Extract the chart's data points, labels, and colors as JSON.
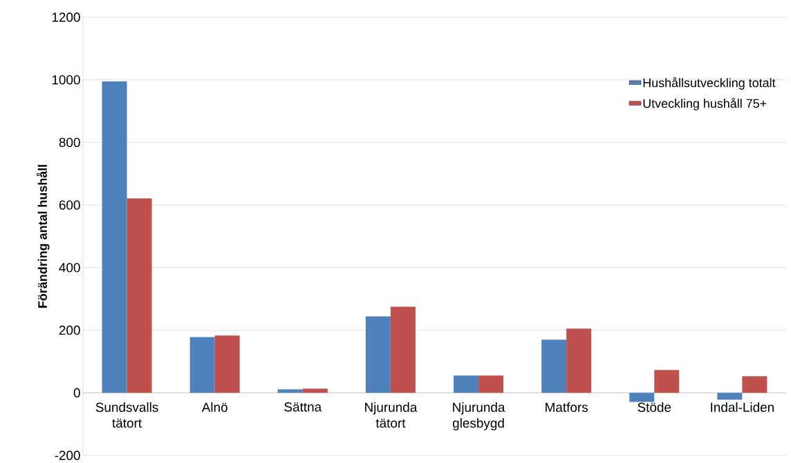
{
  "chart_data": {
    "type": "bar",
    "ylabel": "Förändring antal hushåll",
    "categories": [
      "Sundsvalls tätort",
      "Alnö",
      "Sättna",
      "Njurunda tätort",
      "Njurunda glesbygd",
      "Matfors",
      "Stöde",
      "Indal-Liden"
    ],
    "series": [
      {
        "name": "Hushållsutveckling totalt",
        "color": "#4f81bd",
        "values": [
          995,
          178,
          11,
          244,
          55,
          170,
          -29,
          -22
        ]
      },
      {
        "name": "Utveckling hushåll 75+",
        "color": "#c0504d",
        "values": [
          621,
          183,
          13,
          275,
          55,
          205,
          73,
          53
        ]
      }
    ],
    "ylim": [
      -200,
      1200
    ],
    "yticks": [
      -200,
      0,
      200,
      400,
      600,
      800,
      1000,
      1200
    ],
    "grid": "y",
    "legend": "top right"
  }
}
